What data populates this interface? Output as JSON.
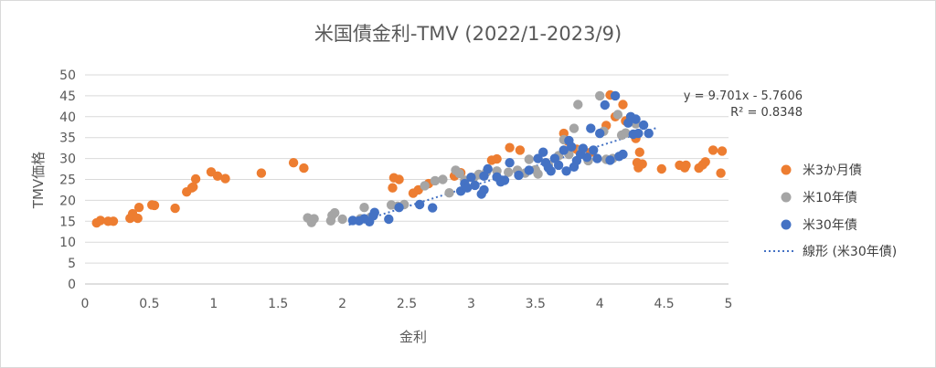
{
  "chart_data": {
    "type": "scatter",
    "title": "米国債金利-TMV (2022/1-2023/9)",
    "xlabel": "金利",
    "ylabel": "TMV価格",
    "xlim": [
      0,
      5
    ],
    "ylim": [
      0,
      50
    ],
    "x_ticks": [
      "0",
      "0.5",
      "1",
      "1.5",
      "2",
      "2.5",
      "3",
      "3.5",
      "4",
      "4.5",
      "5"
    ],
    "y_ticks": [
      "0",
      "5",
      "10",
      "15",
      "20",
      "25",
      "30",
      "35",
      "40",
      "45",
      "50"
    ],
    "grid": "horizontal",
    "legend_position": "right",
    "series": [
      {
        "name": "米3か月債",
        "color": "#ED7D31",
        "points": [
          [
            0.09,
            14.6
          ],
          [
            0.12,
            15.2
          ],
          [
            0.18,
            15.0
          ],
          [
            0.22,
            15.0
          ],
          [
            0.35,
            15.7
          ],
          [
            0.37,
            16.8
          ],
          [
            0.41,
            15.7
          ],
          [
            0.42,
            18.3
          ],
          [
            0.52,
            18.9
          ],
          [
            0.54,
            18.8
          ],
          [
            0.7,
            18.1
          ],
          [
            0.79,
            22.0
          ],
          [
            0.83,
            23.0
          ],
          [
            0.84,
            23.2
          ],
          [
            0.86,
            25.1
          ],
          [
            0.98,
            26.8
          ],
          [
            1.03,
            25.8
          ],
          [
            1.09,
            25.2
          ],
          [
            1.37,
            26.5
          ],
          [
            1.62,
            29.0
          ],
          [
            1.7,
            27.7
          ],
          [
            2.39,
            23.0
          ],
          [
            2.4,
            25.4
          ],
          [
            2.44,
            25.0
          ],
          [
            2.55,
            21.7
          ],
          [
            2.59,
            22.5
          ],
          [
            2.67,
            24.0
          ],
          [
            2.87,
            25.8
          ],
          [
            2.92,
            26.6
          ],
          [
            3.16,
            29.6
          ],
          [
            3.2,
            29.9
          ],
          [
            3.3,
            32.6
          ],
          [
            3.38,
            32.0
          ],
          [
            3.72,
            36.0
          ],
          [
            3.75,
            34.2
          ],
          [
            3.82,
            32.2
          ],
          [
            3.93,
            31.5
          ],
          [
            4.05,
            37.9
          ],
          [
            4.08,
            45.2
          ],
          [
            4.12,
            40.0
          ],
          [
            4.18,
            42.9
          ],
          [
            4.2,
            39.0
          ],
          [
            4.28,
            34.8
          ],
          [
            4.29,
            29.0
          ],
          [
            4.3,
            27.8
          ],
          [
            4.31,
            31.5
          ],
          [
            4.33,
            28.7
          ],
          [
            4.48,
            27.5
          ],
          [
            4.62,
            28.4
          ],
          [
            4.66,
            27.8
          ],
          [
            4.67,
            28.4
          ],
          [
            4.77,
            27.7
          ],
          [
            4.8,
            28.5
          ],
          [
            4.82,
            29.2
          ],
          [
            4.88,
            32.0
          ],
          [
            4.94,
            26.5
          ],
          [
            4.95,
            31.8
          ]
        ]
      },
      {
        "name": "米10年債",
        "color": "#A5A5A5",
        "points": [
          [
            1.73,
            15.8
          ],
          [
            1.76,
            14.7
          ],
          [
            1.78,
            15.6
          ],
          [
            1.91,
            15.1
          ],
          [
            1.92,
            16.4
          ],
          [
            1.94,
            17.0
          ],
          [
            2.0,
            15.5
          ],
          [
            2.14,
            15.6
          ],
          [
            2.17,
            18.3
          ],
          [
            2.22,
            16.0
          ],
          [
            2.38,
            18.9
          ],
          [
            2.43,
            18.6
          ],
          [
            2.48,
            19.0
          ],
          [
            2.64,
            23.5
          ],
          [
            2.72,
            24.7
          ],
          [
            2.78,
            25.0
          ],
          [
            2.83,
            21.8
          ],
          [
            2.88,
            27.2
          ],
          [
            2.91,
            26.4
          ],
          [
            2.95,
            24.8
          ],
          [
            3.02,
            25.4
          ],
          [
            3.06,
            26.2
          ],
          [
            3.12,
            26.8
          ],
          [
            3.2,
            27.0
          ],
          [
            3.29,
            26.7
          ],
          [
            3.36,
            27.2
          ],
          [
            3.42,
            26.5
          ],
          [
            3.45,
            29.8
          ],
          [
            3.5,
            27.3
          ],
          [
            3.52,
            26.3
          ],
          [
            3.6,
            28.5
          ],
          [
            3.68,
            30.7
          ],
          [
            3.72,
            34.5
          ],
          [
            3.76,
            31.0
          ],
          [
            3.8,
            37.2
          ],
          [
            3.83,
            42.9
          ],
          [
            3.86,
            32.2
          ],
          [
            3.91,
            29.5
          ],
          [
            4.0,
            45.0
          ],
          [
            4.03,
            36.5
          ],
          [
            4.05,
            29.8
          ],
          [
            4.1,
            30.0
          ],
          [
            4.14,
            40.5
          ],
          [
            4.17,
            35.6
          ],
          [
            4.2,
            36.1
          ],
          [
            4.25,
            39.0
          ],
          [
            4.28,
            38.3
          ]
        ]
      },
      {
        "name": "米30年債",
        "color": "#4472C4",
        "points": [
          [
            2.08,
            15.2
          ],
          [
            2.13,
            15.1
          ],
          [
            2.17,
            15.6
          ],
          [
            2.21,
            14.9
          ],
          [
            2.24,
            16.3
          ],
          [
            2.25,
            17.1
          ],
          [
            2.36,
            15.5
          ],
          [
            2.44,
            18.3
          ],
          [
            2.6,
            19.0
          ],
          [
            2.7,
            18.2
          ],
          [
            2.92,
            22.2
          ],
          [
            2.95,
            24.0
          ],
          [
            2.97,
            23.0
          ],
          [
            3.0,
            25.5
          ],
          [
            3.03,
            23.6
          ],
          [
            3.08,
            21.5
          ],
          [
            3.1,
            22.5
          ],
          [
            3.1,
            25.8
          ],
          [
            3.13,
            27.5
          ],
          [
            3.2,
            25.6
          ],
          [
            3.23,
            24.4
          ],
          [
            3.26,
            24.8
          ],
          [
            3.3,
            29.0
          ],
          [
            3.37,
            26.0
          ],
          [
            3.45,
            27.2
          ],
          [
            3.52,
            30.0
          ],
          [
            3.56,
            31.5
          ],
          [
            3.58,
            29.0
          ],
          [
            3.6,
            27.8
          ],
          [
            3.62,
            27.0
          ],
          [
            3.65,
            30.0
          ],
          [
            3.68,
            28.4
          ],
          [
            3.72,
            32.0
          ],
          [
            3.74,
            27.0
          ],
          [
            3.76,
            34.3
          ],
          [
            3.78,
            32.8
          ],
          [
            3.8,
            28.0
          ],
          [
            3.82,
            29.5
          ],
          [
            3.85,
            31.0
          ],
          [
            3.87,
            32.4
          ],
          [
            3.9,
            30.3
          ],
          [
            3.93,
            37.2
          ],
          [
            3.95,
            32.0
          ],
          [
            3.98,
            30.0
          ],
          [
            4.0,
            36.0
          ],
          [
            4.04,
            42.8
          ],
          [
            4.08,
            29.6
          ],
          [
            4.12,
            45.0
          ],
          [
            4.15,
            30.5
          ],
          [
            4.18,
            31.0
          ],
          [
            4.22,
            38.5
          ],
          [
            4.24,
            40.0
          ],
          [
            4.26,
            35.8
          ],
          [
            4.28,
            39.4
          ],
          [
            4.3,
            36.0
          ],
          [
            4.34,
            38.0
          ],
          [
            4.38,
            36.0
          ]
        ]
      }
    ],
    "trendline": {
      "name": "線形 (米30年債)",
      "color": "#4472C4",
      "slope": 9.701,
      "intercept": -5.7606,
      "x_range": [
        2.05,
        4.45
      ],
      "equation": "y = 9.701x - 5.7606",
      "r2": "R² = 0.8348"
    }
  }
}
